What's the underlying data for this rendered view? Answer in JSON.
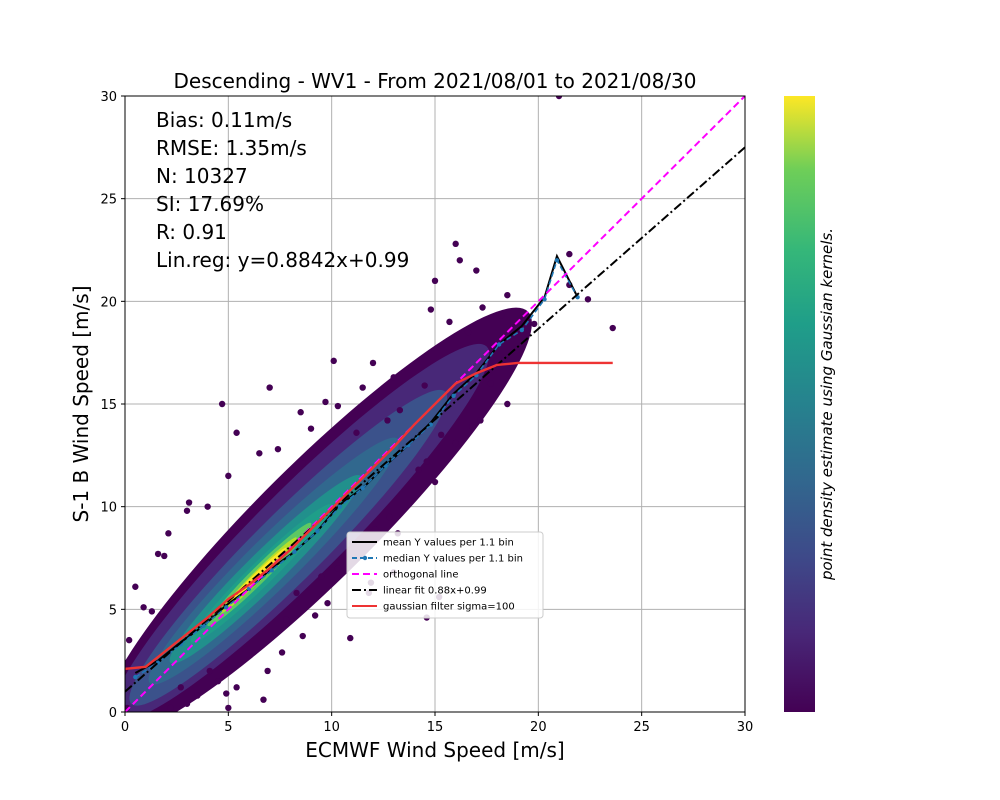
{
  "chart_data": {
    "type": "scatter",
    "title": "Descending - WV1 - From 2021/08/01 to 2021/08/30",
    "xlabel": "ECMWF Wind Speed [m/s]",
    "ylabel": "S-1 B Wind Speed [m/s]",
    "xlim": [
      0,
      30
    ],
    "ylim": [
      0,
      30
    ],
    "xticks": [
      "0",
      "5",
      "10",
      "15",
      "20",
      "25",
      "30"
    ],
    "yticks": [
      "0",
      "5",
      "10",
      "15",
      "20",
      "25",
      "30"
    ],
    "grid": true,
    "legend_position": "center",
    "stats": [
      "Bias: 0.11m/s",
      "RMSE: 1.35m/s",
      "N: 10327",
      "SI: 17.69%",
      "R: 0.91",
      "Lin.reg: y=0.8842x+0.99"
    ],
    "colorbar_label": "point density estimate using Gaussian kernels.",
    "colormap": [
      "#440154",
      "#3b528b",
      "#21908c",
      "#5dc863",
      "#fde725"
    ],
    "series": [
      {
        "name": "mean Y values per 1.1 bin",
        "style": "solid",
        "color": "#000000",
        "x": [
          0.5,
          1.6,
          2.7,
          3.8,
          4.9,
          6.0,
          7.1,
          8.2,
          9.3,
          10.4,
          11.5,
          12.6,
          13.7,
          14.8,
          15.9,
          17.0,
          18.1,
          19.2,
          20.3,
          20.9,
          21.9
        ],
        "y": [
          1.9,
          2.5,
          3.4,
          4.2,
          5.2,
          6.0,
          7.0,
          7.8,
          8.8,
          10.1,
          10.9,
          12.0,
          13.0,
          14.1,
          15.5,
          16.5,
          17.9,
          18.8,
          20.2,
          22.2,
          20.2
        ]
      },
      {
        "name": "median Y values per 1.1 bin",
        "style": "dashed-markers",
        "color": "#1f77b4",
        "x": [
          0.5,
          1.6,
          2.7,
          3.8,
          4.9,
          6.0,
          7.1,
          8.2,
          9.3,
          10.4,
          11.5,
          12.6,
          13.7,
          14.8,
          15.9,
          17.0,
          18.1,
          19.2,
          20.3,
          20.9,
          21.9
        ],
        "y": [
          1.7,
          2.4,
          3.3,
          4.2,
          5.1,
          6.0,
          6.9,
          7.8,
          8.8,
          10.0,
          10.9,
          12.0,
          13.0,
          14.0,
          15.4,
          16.4,
          17.9,
          18.6,
          20.1,
          22.0,
          20.2
        ]
      },
      {
        "name": "orthogonal line",
        "style": "dashed",
        "color": "#ff00ff",
        "x": [
          0,
          30
        ],
        "y": [
          0,
          30
        ]
      },
      {
        "name": "linear fit 0.88x+0.99",
        "style": "dashdot",
        "color": "#000000",
        "x": [
          0,
          30
        ],
        "y": [
          0.99,
          27.5
        ]
      },
      {
        "name": "gaussian filter sigma=100",
        "style": "solid",
        "color": "#ee3333",
        "x": [
          0,
          1.0,
          2.0,
          3.0,
          4.0,
          5.0,
          6.0,
          7.0,
          8.0,
          9.0,
          10.0,
          11.0,
          12.0,
          13.0,
          14.0,
          15.0,
          16.0,
          17.0,
          18.0,
          19.0,
          20.0,
          22.0,
          23.6
        ],
        "y": [
          2.1,
          2.2,
          3.0,
          3.8,
          4.6,
          5.5,
          6.2,
          7.0,
          7.9,
          8.9,
          9.9,
          10.9,
          11.9,
          12.9,
          14.0,
          15.0,
          16.0,
          16.5,
          16.9,
          17.0,
          17.0,
          17.0,
          17.0
        ]
      }
    ],
    "density_peak": {
      "x": 6.5,
      "y": 6.8
    },
    "outliers": [
      [
        21,
        30
      ],
      [
        16,
        22.8
      ],
      [
        16.2,
        22.0
      ],
      [
        17,
        21.5
      ],
      [
        21.5,
        22.3
      ],
      [
        18.5,
        20.3
      ],
      [
        15,
        21.0
      ],
      [
        4.7,
        15
      ],
      [
        7.0,
        15.8
      ],
      [
        5.4,
        13.6
      ],
      [
        8.5,
        14.6
      ],
      [
        10.1,
        17.1
      ],
      [
        9.7,
        15.1
      ],
      [
        10.3,
        14.9
      ],
      [
        12.0,
        17.0
      ],
      [
        13.0,
        16.3
      ],
      [
        11.5,
        15.8
      ],
      [
        9.0,
        13.8
      ],
      [
        6.5,
        12.6
      ],
      [
        7.4,
        12.8
      ],
      [
        8.6,
        12.1
      ],
      [
        3.1,
        10.2
      ],
      [
        2.1,
        8.7
      ],
      [
        1.6,
        7.7
      ],
      [
        1.9,
        7.6
      ],
      [
        0.5,
        6.1
      ],
      [
        0.9,
        5.1
      ],
      [
        1.3,
        4.9
      ],
      [
        0.2,
        3.5
      ],
      [
        3.0,
        9.8
      ],
      [
        5.0,
        11.5
      ],
      [
        4.0,
        10.0
      ],
      [
        14.5,
        15.9
      ],
      [
        17.3,
        19.7
      ],
      [
        19.8,
        18.9
      ],
      [
        21.5,
        20.8
      ],
      [
        22.4,
        20.1
      ],
      [
        23.6,
        18.7
      ],
      [
        18.2,
        19.3
      ],
      [
        14.8,
        19.6
      ],
      [
        15.7,
        19.0
      ],
      [
        16.6,
        18.5
      ],
      [
        17.2,
        14.2
      ],
      [
        16.8,
        13.9
      ],
      [
        18.5,
        15.0
      ],
      [
        17.7,
        16.0
      ],
      [
        15.0,
        11.2
      ],
      [
        14.2,
        11.8
      ],
      [
        14.6,
        12.2
      ],
      [
        16.0,
        13.1
      ],
      [
        15.3,
        13.5
      ],
      [
        12.8,
        9.5
      ],
      [
        12.1,
        8.9
      ],
      [
        13.2,
        8.7
      ],
      [
        11.0,
        8.2
      ],
      [
        10.3,
        7.0
      ],
      [
        11.9,
        6.3
      ],
      [
        13.0,
        6.8
      ],
      [
        15.2,
        5.6
      ],
      [
        14.6,
        4.6
      ],
      [
        11.8,
        5.8
      ],
      [
        10.9,
        3.6
      ],
      [
        9.2,
        4.7
      ],
      [
        8.6,
        3.7
      ],
      [
        9.8,
        5.3
      ],
      [
        7.6,
        2.9
      ],
      [
        6.9,
        2.0
      ],
      [
        6.7,
        0.6
      ],
      [
        5.4,
        1.2
      ],
      [
        4.9,
        0.9
      ],
      [
        5.0,
        0.2
      ],
      [
        4.5,
        1.5
      ],
      [
        3.5,
        0.8
      ],
      [
        3.0,
        0.4
      ],
      [
        2.2,
        0.2
      ],
      [
        2.7,
        1.2
      ],
      [
        4.1,
        2.0
      ],
      [
        0.1,
        0.2
      ],
      [
        7.8,
        4.5
      ],
      [
        8.3,
        5.8
      ],
      [
        9.5,
        6.6
      ],
      [
        12.7,
        14.2
      ],
      [
        13.3,
        14.7
      ],
      [
        11.2,
        13.6
      ]
    ]
  }
}
